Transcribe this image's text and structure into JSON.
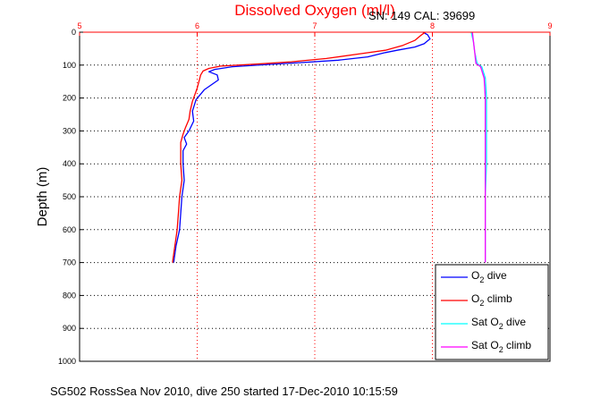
{
  "chart_data": {
    "type": "line",
    "title": "Dissolved Oxygen (ml/l)",
    "annotation": "SN: 149  CAL: 39699",
    "ylabel": "Depth (m)",
    "footer": "SG502 RossSea Nov 2010, dive 250 started 17-Dec-2010 10:15:59",
    "xlim": [
      5,
      9
    ],
    "ylim": [
      0,
      1000
    ],
    "y_reversed": true,
    "x_axis_position": "top",
    "xticks": [
      5,
      6,
      7,
      8,
      9
    ],
    "yticks": [
      0,
      100,
      200,
      300,
      400,
      500,
      600,
      700,
      800,
      900,
      1000
    ],
    "grid": true,
    "legend_position": "bottom-right",
    "colors": {
      "title": "#ff0000",
      "x_axis": "#ff0000",
      "y_axis": "#000000",
      "grid": "#000000",
      "grid_x": "#ff0000"
    },
    "series": [
      {
        "name": "O2 dive",
        "legend": {
          "pre": "O",
          "sub": "2",
          "post": " dive"
        },
        "color": "#0000ff",
        "points": [
          [
            7.92,
            0
          ],
          [
            7.96,
            8
          ],
          [
            7.98,
            20
          ],
          [
            7.93,
            35
          ],
          [
            7.85,
            45
          ],
          [
            7.7,
            55
          ],
          [
            7.6,
            62
          ],
          [
            7.45,
            75
          ],
          [
            7.2,
            85
          ],
          [
            6.9,
            92
          ],
          [
            6.6,
            98
          ],
          [
            6.3,
            105
          ],
          [
            6.15,
            113
          ],
          [
            6.1,
            120
          ],
          [
            6.17,
            130
          ],
          [
            6.18,
            145
          ],
          [
            6.06,
            175
          ],
          [
            5.99,
            205
          ],
          [
            5.96,
            240
          ],
          [
            5.97,
            270
          ],
          [
            5.93,
            300
          ],
          [
            5.89,
            320
          ],
          [
            5.91,
            340
          ],
          [
            5.88,
            360
          ],
          [
            5.88,
            400
          ],
          [
            5.89,
            450
          ],
          [
            5.87,
            500
          ],
          [
            5.86,
            550
          ],
          [
            5.85,
            600
          ],
          [
            5.82,
            650
          ],
          [
            5.8,
            700
          ]
        ]
      },
      {
        "name": "O2 climb",
        "legend": {
          "pre": "O",
          "sub": "2",
          "post": " climb"
        },
        "color": "#ff0000",
        "points": [
          [
            7.94,
            0
          ],
          [
            7.9,
            10
          ],
          [
            7.85,
            25
          ],
          [
            7.75,
            40
          ],
          [
            7.6,
            55
          ],
          [
            7.4,
            65
          ],
          [
            7.1,
            80
          ],
          [
            6.8,
            90
          ],
          [
            6.5,
            97
          ],
          [
            6.2,
            103
          ],
          [
            6.1,
            110
          ],
          [
            6.05,
            118
          ],
          [
            6.03,
            130
          ],
          [
            6.0,
            170
          ],
          [
            5.96,
            210
          ],
          [
            5.94,
            240
          ],
          [
            5.93,
            265
          ],
          [
            5.9,
            290
          ],
          [
            5.88,
            310
          ],
          [
            5.86,
            335
          ],
          [
            5.86,
            360
          ],
          [
            5.86,
            400
          ],
          [
            5.87,
            450
          ],
          [
            5.85,
            500
          ],
          [
            5.84,
            550
          ],
          [
            5.83,
            600
          ],
          [
            5.81,
            650
          ],
          [
            5.79,
            700
          ]
        ]
      },
      {
        "name": "Sat O2 dive",
        "legend": {
          "pre": "Sat O",
          "sub": "2",
          "post": " dive"
        },
        "color": "#00ffff",
        "points": [
          [
            8.33,
            0
          ],
          [
            8.35,
            30
          ],
          [
            8.36,
            60
          ],
          [
            8.38,
            95
          ],
          [
            8.42,
            105
          ],
          [
            8.45,
            140
          ],
          [
            8.46,
            200
          ],
          [
            8.46,
            300
          ],
          [
            8.46,
            400
          ],
          [
            8.45,
            500
          ],
          [
            8.45,
            600
          ],
          [
            8.45,
            700
          ]
        ]
      },
      {
        "name": "Sat O2 climb",
        "legend": {
          "pre": "Sat O",
          "sub": "2",
          "post": " climb"
        },
        "color": "#ff00ff",
        "points": [
          [
            8.34,
            0
          ],
          [
            8.35,
            30
          ],
          [
            8.36,
            60
          ],
          [
            8.37,
            95
          ],
          [
            8.41,
            105
          ],
          [
            8.44,
            140
          ],
          [
            8.45,
            200
          ],
          [
            8.45,
            300
          ],
          [
            8.45,
            400
          ],
          [
            8.45,
            500
          ],
          [
            8.45,
            600
          ],
          [
            8.45,
            700
          ]
        ]
      }
    ]
  }
}
